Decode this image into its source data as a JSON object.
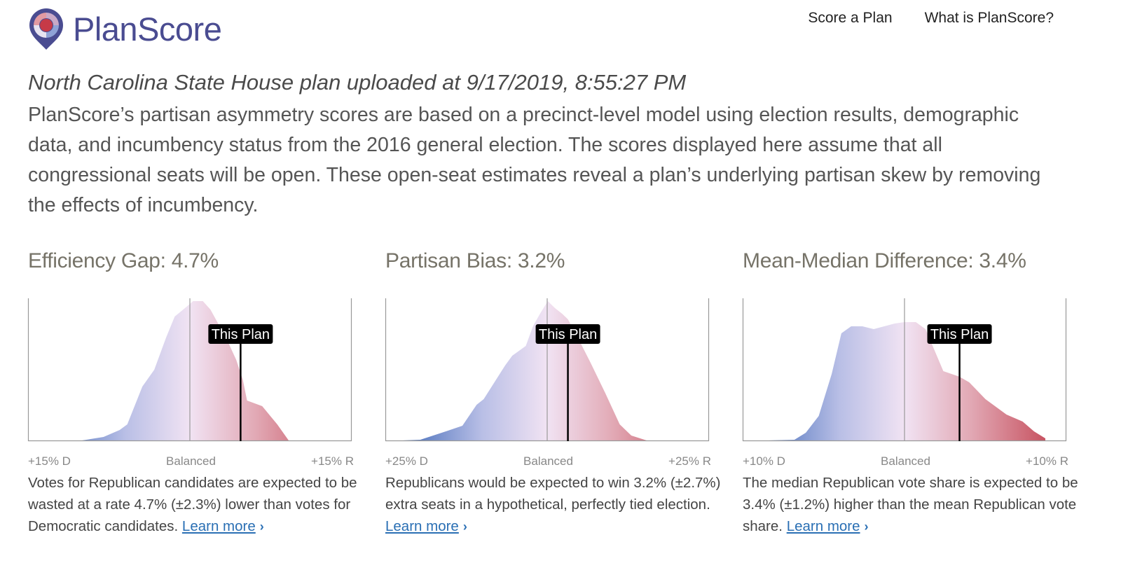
{
  "brand": {
    "name": "PlanScore",
    "colors": {
      "logo_blue": "#4a4c91",
      "logo_red": "#c63a47"
    }
  },
  "nav": {
    "items": [
      "Score a Plan",
      "What is PlanScore?"
    ]
  },
  "plan": {
    "title": "North Carolina State House plan uploaded at 9/17/2019, 8:55:27 PM",
    "intro": "PlanScore’s partisan asymmetry scores are based on a precinct-level model using election results, demographic data, and incumbency status from the 2016 general election. The scores displayed here assume that all congressional seats will be open. These open-seat estimates reveal a plan’s underlying partisan skew by removing the effects of incumbency."
  },
  "colors": {
    "dem": "#3e68b7",
    "neutral": "#f1e3f3",
    "rep": "#c54b59",
    "marker": "#000000"
  },
  "metrics": [
    {
      "title": "Efficiency Gap: 4.7%",
      "marker_label": "This Plan",
      "axis": {
        "left": "+15% D",
        "center": "Balanced",
        "right": "+15% R"
      },
      "description": "Votes for Republican candidates are expected to be wasted at a rate 4.7% (±2.3%) lower than votes for Democratic candidates.",
      "learn_more": "Learn more"
    },
    {
      "title": "Partisan Bias: 3.2%",
      "marker_label": "This Plan",
      "axis": {
        "left": "+25% D",
        "center": "Balanced",
        "right": "+25% R"
      },
      "description": "Republicans would be expected to win 3.2% (±2.7%) extra seats in a hypothetical, perfectly tied election.",
      "learn_more": "Learn more"
    },
    {
      "title": "Mean-Median Difference: 3.4%",
      "marker_label": "This Plan",
      "axis": {
        "left": "+10% D",
        "center": "Balanced",
        "right": "+10% R"
      },
      "description": "The median Republican vote share is expected to be 3.4% (±1.2%) higher than the mean Republican vote share.",
      "learn_more": "Learn more"
    }
  ],
  "chart_data": [
    {
      "type": "area",
      "title": "Efficiency Gap: 4.7%",
      "x_tick_labels": [
        "+15% D",
        "Balanced",
        "+15% R"
      ],
      "xlim": [
        -15,
        15
      ],
      "marker": {
        "label": "This Plan",
        "x": 4.7
      },
      "x": [
        -15,
        -10,
        -8,
        -6.5,
        -5.8,
        -4.4,
        -3.3,
        -2.2,
        -1.4,
        -0.3,
        0.3,
        1.2,
        1.9,
        3.4,
        4.3,
        4.9,
        5.3,
        6.7,
        8.1,
        9.2
      ],
      "y": [
        0,
        0.005,
        0.03,
        0.08,
        0.12,
        0.39,
        0.51,
        0.74,
        0.89,
        0.96,
        1.0,
        1.0,
        0.94,
        0.73,
        0.58,
        0.44,
        0.29,
        0.25,
        0.12,
        0
      ]
    },
    {
      "type": "area",
      "title": "Partisan Bias: 3.2%",
      "x_tick_labels": [
        "+25% D",
        "Balanced",
        "+25% R"
      ],
      "xlim": [
        -25,
        25
      ],
      "marker": {
        "label": "This Plan",
        "x": 3.2
      },
      "x": [
        -25,
        -19.6,
        -16.3,
        -13.1,
        -10.9,
        -9.8,
        -6.5,
        -5.4,
        -3.3,
        -2.2,
        -1.1,
        0.1,
        1.2,
        2.3,
        3.2,
        4.5,
        6.7,
        9.0,
        11.2,
        13.0,
        15.7
      ],
      "y": [
        0,
        0.01,
        0.06,
        0.11,
        0.26,
        0.3,
        0.54,
        0.61,
        0.68,
        0.82,
        0.91,
        1.0,
        0.95,
        0.91,
        0.87,
        0.76,
        0.56,
        0.34,
        0.12,
        0.04,
        0
      ]
    },
    {
      "type": "area",
      "title": "Mean-Median Difference: 3.4%",
      "x_tick_labels": [
        "+10% D",
        "Balanced",
        "+10% R"
      ],
      "xlim": [
        -10,
        10
      ],
      "marker": {
        "label": "This Plan",
        "x": 3.4
      },
      "x": [
        -10,
        -6.8,
        -6.1,
        -5.3,
        -4.5,
        -3.9,
        -3.3,
        -2.6,
        -1.9,
        -0.6,
        0.0,
        0.7,
        1.3,
        2.4,
        3.4,
        4.0,
        5.0,
        6.3,
        7.3,
        8.0,
        8.7
      ],
      "y": [
        0,
        0.01,
        0.06,
        0.18,
        0.48,
        0.77,
        0.82,
        0.82,
        0.8,
        0.84,
        0.85,
        0.85,
        0.8,
        0.5,
        0.46,
        0.42,
        0.3,
        0.19,
        0.14,
        0.07,
        0.02
      ]
    }
  ]
}
